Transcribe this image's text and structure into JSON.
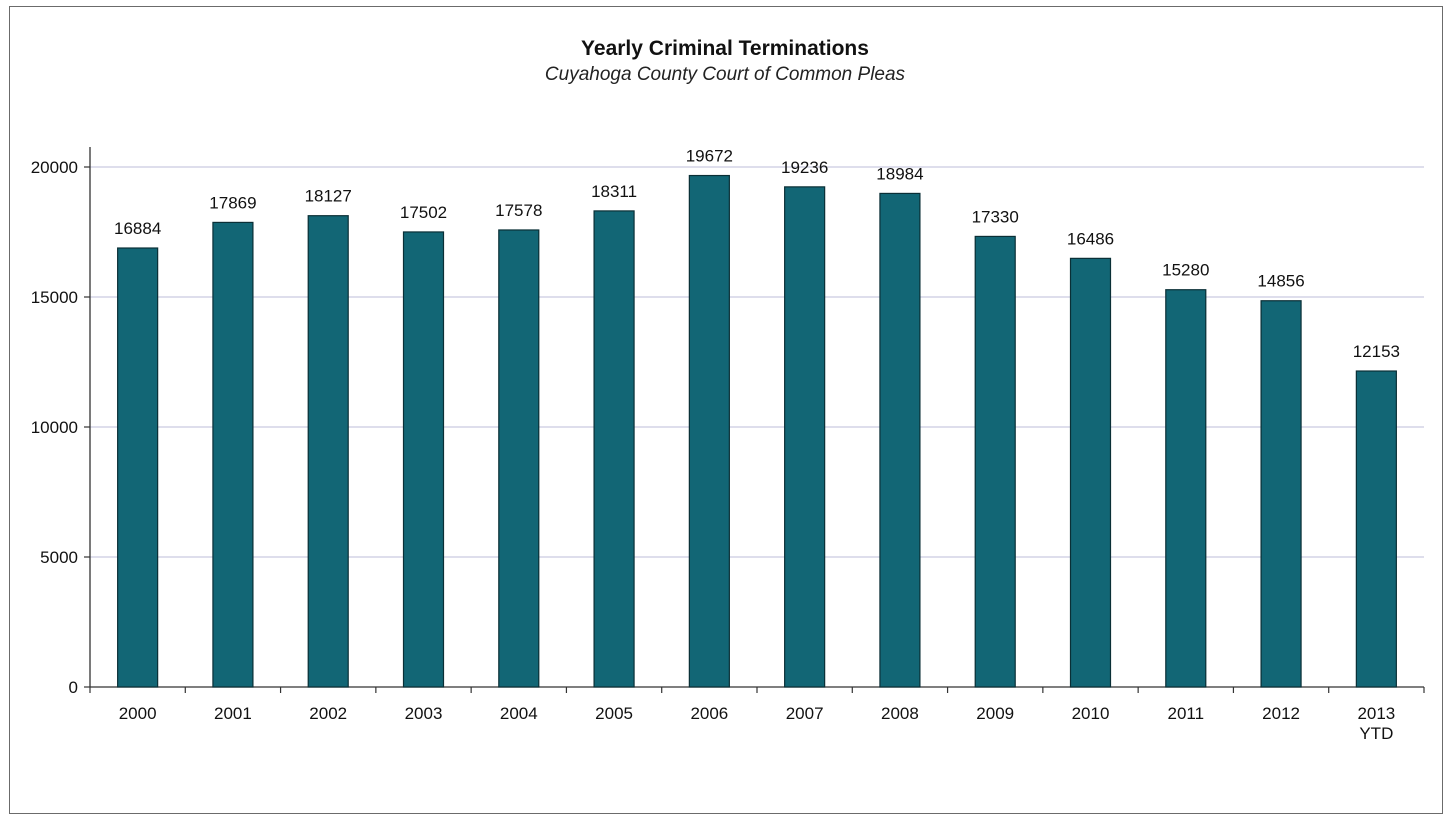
{
  "chart_data": {
    "type": "bar",
    "title": "Yearly Criminal Terminations",
    "subtitle": "Cuyahoga County Court of Common Pleas",
    "xlabel": "",
    "ylabel": "",
    "categories": [
      "2000",
      "2001",
      "2002",
      "2003",
      "2004",
      "2005",
      "2006",
      "2007",
      "2008",
      "2009",
      "2010",
      "2011",
      "2012",
      "2013 YTD"
    ],
    "category_lines": [
      [
        "2000"
      ],
      [
        "2001"
      ],
      [
        "2002"
      ],
      [
        "2003"
      ],
      [
        "2004"
      ],
      [
        "2005"
      ],
      [
        "2006"
      ],
      [
        "2007"
      ],
      [
        "2008"
      ],
      [
        "2009"
      ],
      [
        "2010"
      ],
      [
        "2011"
      ],
      [
        "2012"
      ],
      [
        "2013",
        "YTD"
      ]
    ],
    "values": [
      16884,
      17869,
      18127,
      17502,
      17578,
      18311,
      19672,
      19236,
      18984,
      17330,
      16486,
      15280,
      14856,
      12153
    ],
    "data_labels": [
      "16884",
      "17869",
      "18127",
      "17502",
      "17578",
      "18311",
      "19672",
      "19236",
      "18984",
      "17330",
      "16486",
      "15280",
      "14856",
      "12153"
    ],
    "ylim": [
      0,
      20000
    ],
    "yticks": [
      0,
      5000,
      10000,
      15000,
      20000
    ],
    "ytick_labels": [
      "0",
      "5000",
      "10000",
      "15000",
      "20000"
    ],
    "grid": true,
    "legend": "none",
    "bar_color": "#126675",
    "bar_edge_color": "#0a2f36",
    "grid_color": "#c9cbe0"
  }
}
